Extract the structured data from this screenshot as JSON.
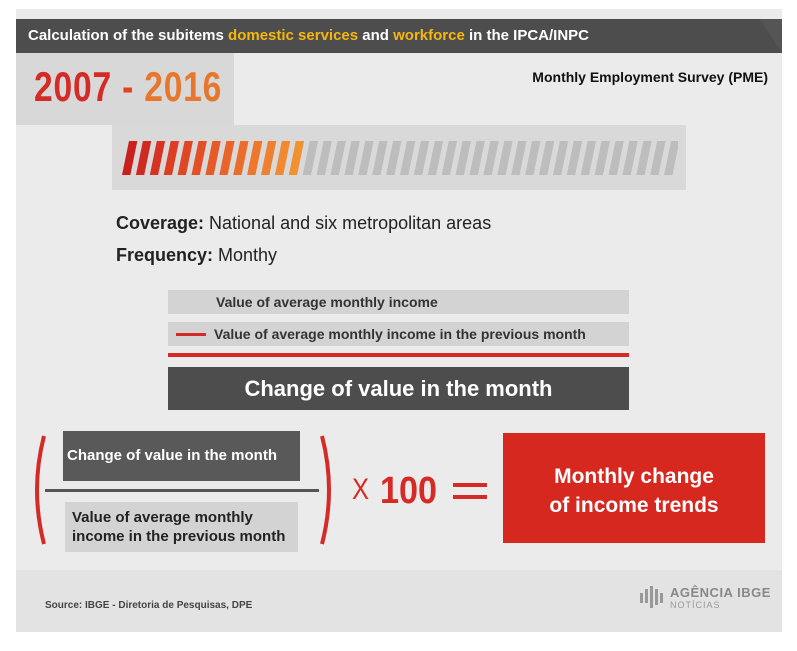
{
  "header": {
    "title_part1": "Calculation of the subitems ",
    "title_highlight1": "domestic services",
    "title_part2": " and ",
    "title_highlight2": "workforce",
    "title_part3": " in the IPCA/INPC"
  },
  "years": {
    "start": "2007",
    "dash": " - ",
    "end": "2016"
  },
  "survey": "Monthly Employment Survey (PME)",
  "progress": {
    "filled_segments": 13,
    "total_segments": 40
  },
  "coverage": {
    "label": "Coverage:",
    "value": " National and six metropolitan areas"
  },
  "frequency": {
    "label": "Frequency:",
    "value": " Monthy"
  },
  "rows": {
    "current_income": "Value of average monthly income",
    "previous_income": "Value of average monthly income in the previous month"
  },
  "change_title": "Change of value in the month",
  "formula": {
    "numerator": "Change of value in the month",
    "denominator": "Value of average monthly income in the previous month",
    "times": "X",
    "multiplier": "100",
    "result_line1": "Monthly change",
    "result_line2": "of income trends"
  },
  "footer": {
    "source": "Source: IBGE - Diretoria de Pesquisas, DPE",
    "logo_line1": "AGÊNCIA IBGE",
    "logo_line2": "NOTÍCIAS"
  },
  "colors": {
    "accent_red": "#d42b27",
    "highlight_yellow": "#f5b70f",
    "dark_gray": "#4d4d4d",
    "stripe_gray": "#bdbdbd"
  },
  "icons": {
    "logo": "ibge-logo-icon"
  }
}
